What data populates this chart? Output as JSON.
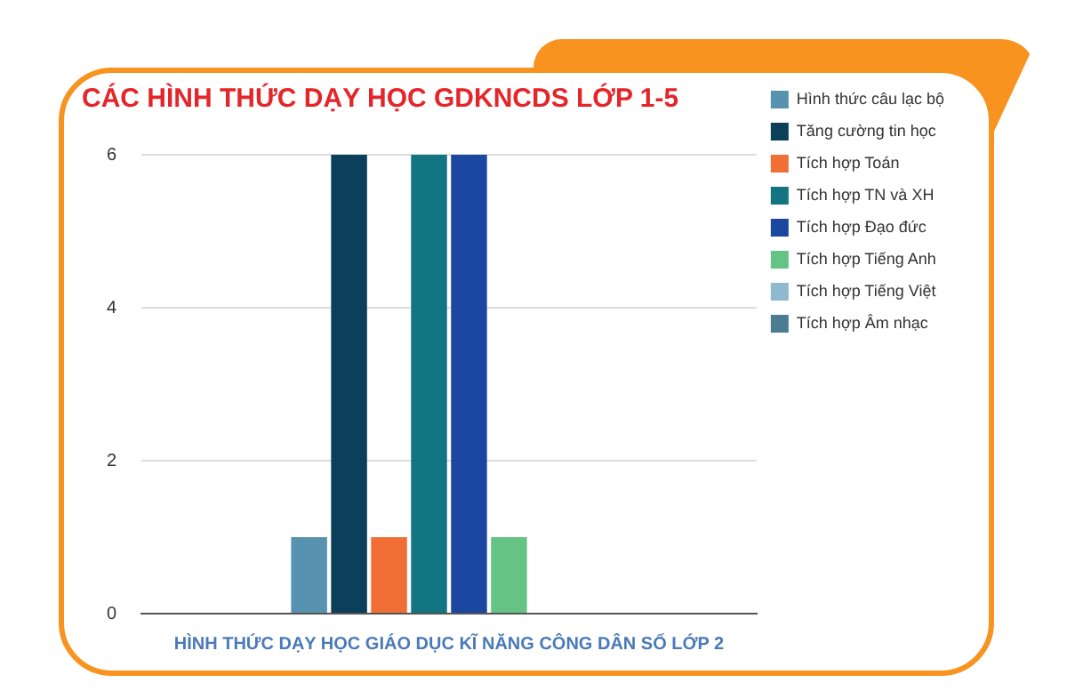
{
  "chart_data": {
    "type": "bar",
    "title": "CÁC HÌNH THỨC DẠY HỌC GDKNCDS LỚP 1-5",
    "categories": [
      "HÌNH THỨC DẠY HỌC GIÁO DỤC KĨ NĂNG CÔNG DÂN SỐ LỚP 2"
    ],
    "series": [
      {
        "name": "Hình thức câu lạc bộ",
        "color": "#5792b0",
        "values": [
          1
        ]
      },
      {
        "name": "Tăng cường tin học",
        "color": "#0b3f5a",
        "values": [
          6
        ]
      },
      {
        "name": "Tích hợp Toán",
        "color": "#f16f35",
        "values": [
          1
        ]
      },
      {
        "name": "Tích hợp TN và XH",
        "color": "#137582",
        "values": [
          6
        ]
      },
      {
        "name": "Tích hợp Đạo đức",
        "color": "#1c47a0",
        "values": [
          6
        ]
      },
      {
        "name": "Tích hợp Tiếng Anh",
        "color": "#66c386",
        "values": [
          1
        ]
      },
      {
        "name": "Tích hợp Tiếng Việt",
        "color": "#8fb9cf",
        "values": [
          0
        ]
      },
      {
        "name": "Tích hợp Âm nhạc",
        "color": "#4a7c94",
        "values": [
          0
        ]
      }
    ],
    "ylim": [
      0,
      6
    ],
    "yticks": [
      0,
      2,
      4,
      6
    ],
    "grid": "y",
    "legend": "right"
  }
}
